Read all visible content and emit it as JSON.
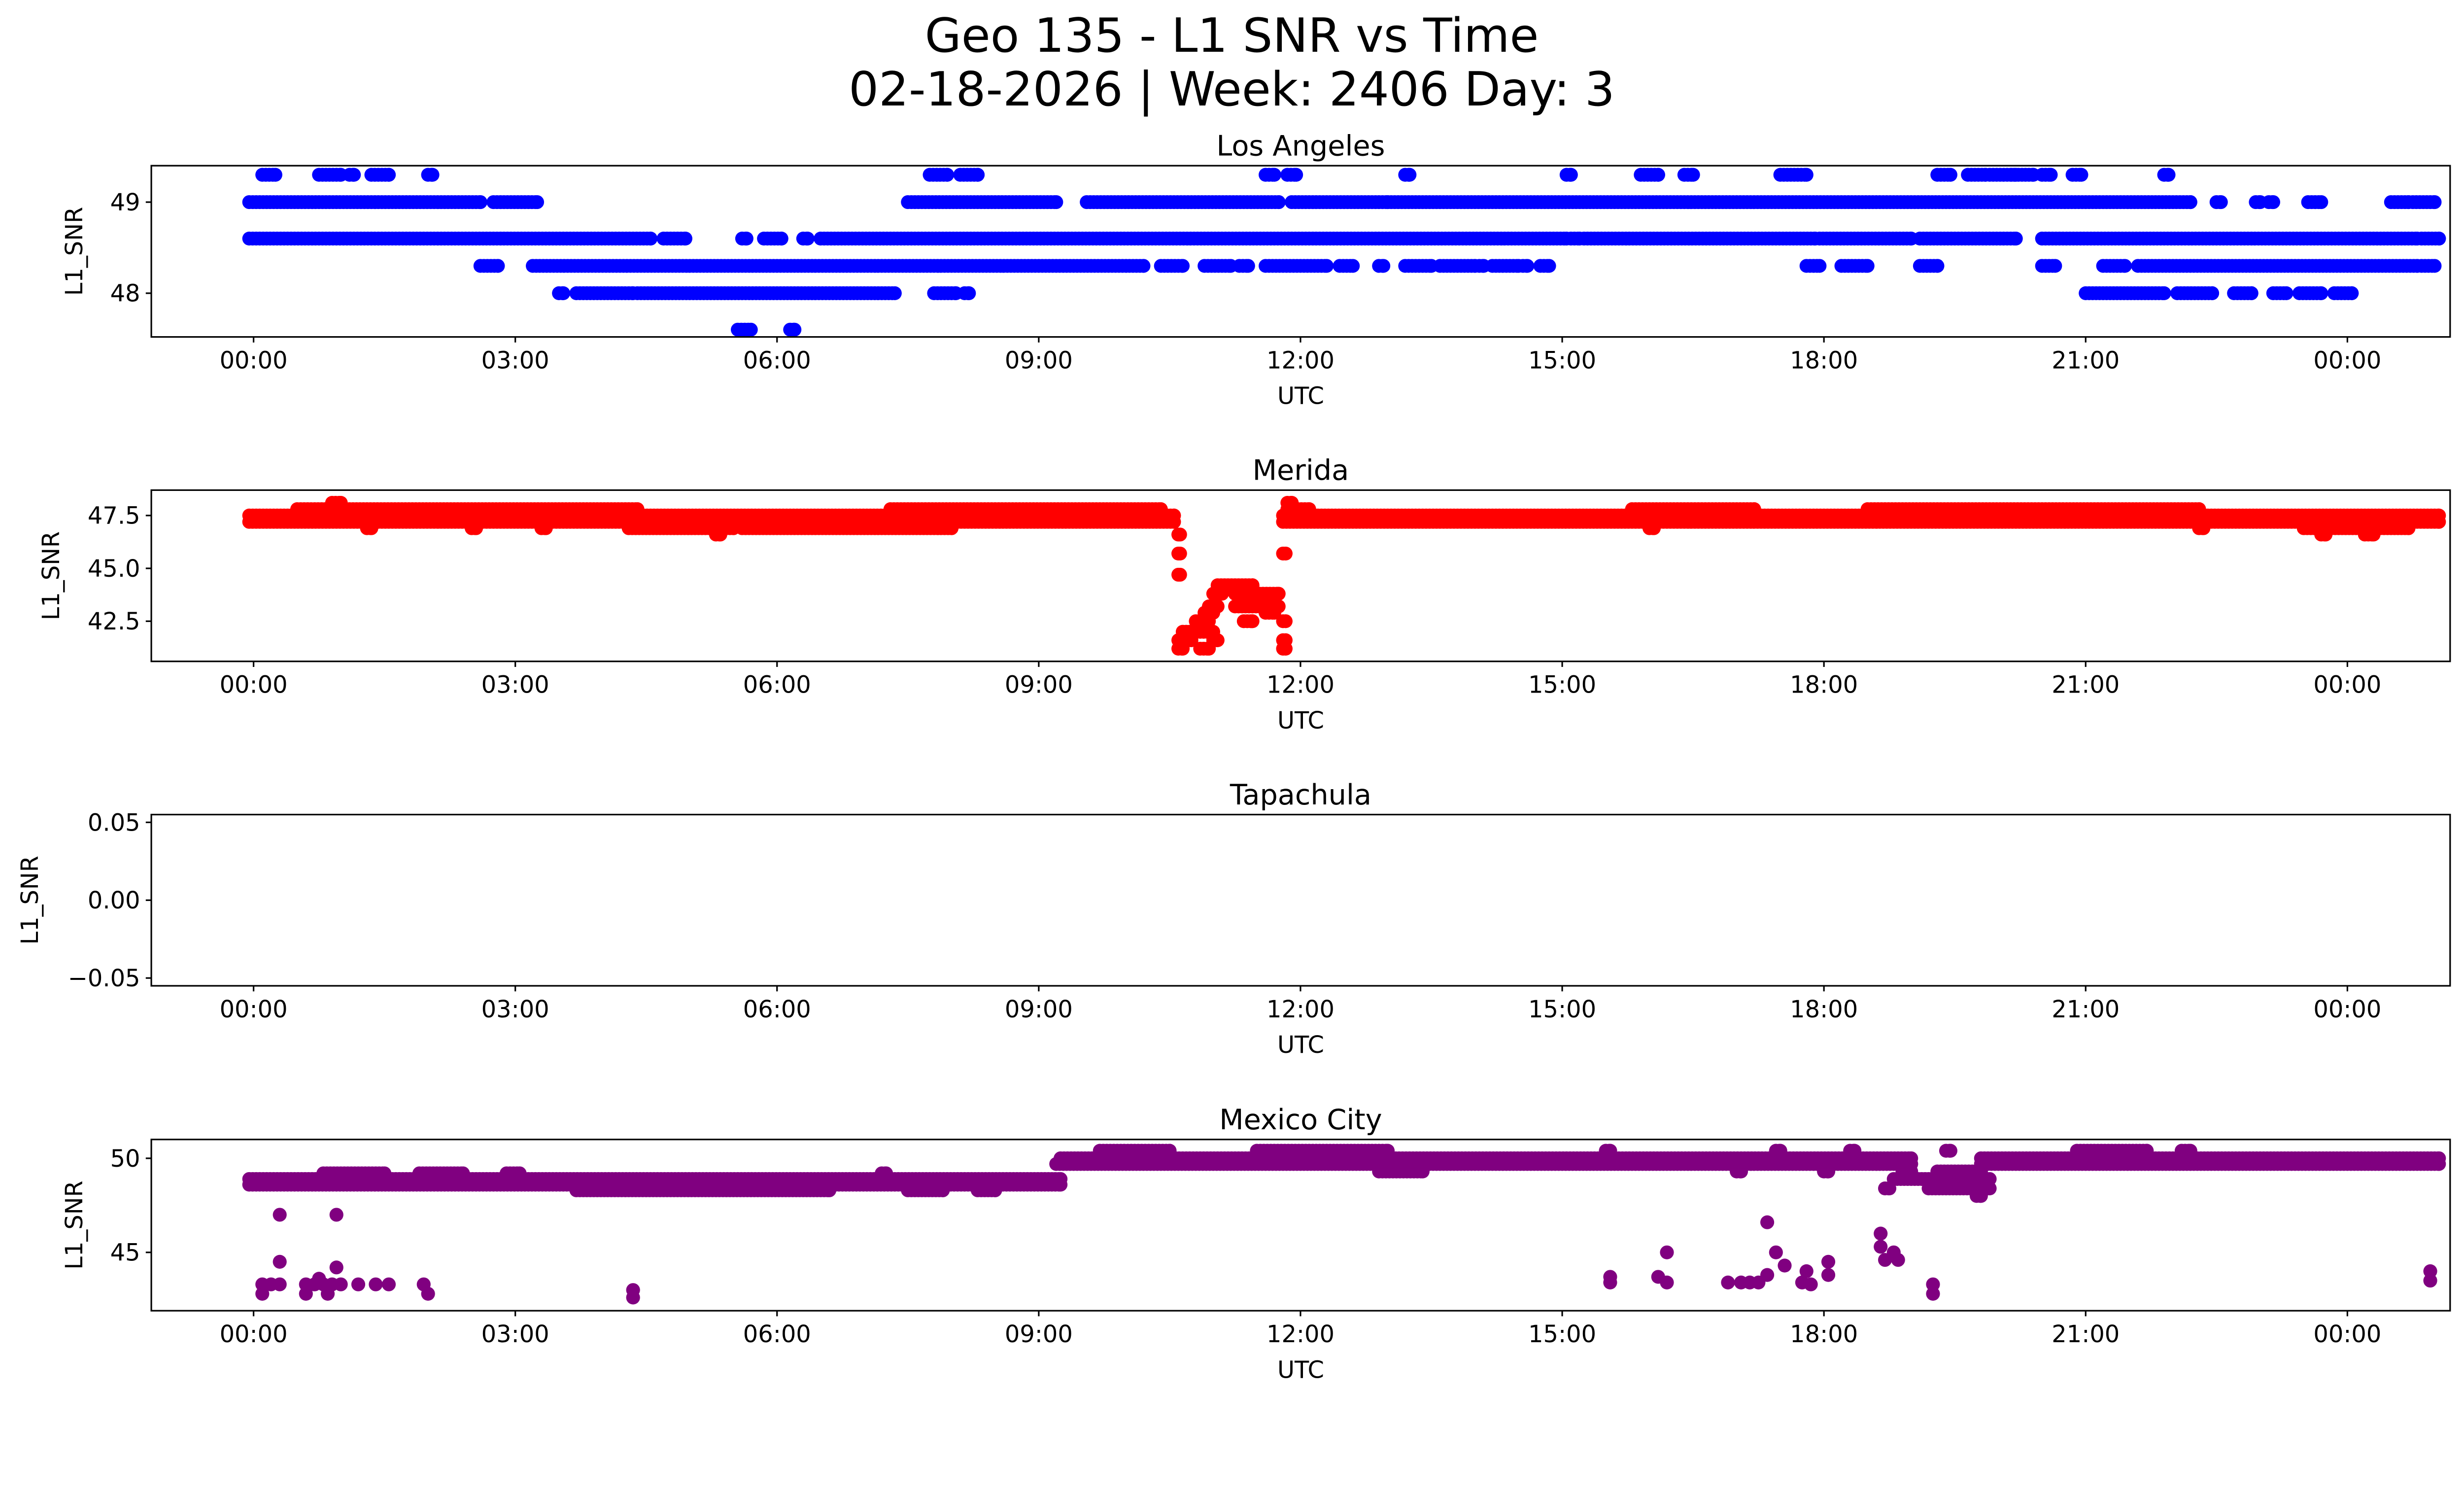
{
  "chart_data": {
    "type": "scatter",
    "title": "Geo 135 - L1 SNR vs Time",
    "subtitle": "02-18-2026 | Week: 2406 Day: 3",
    "x_tick_labels": [
      "00:00",
      "03:00",
      "06:00",
      "09:00",
      "12:00",
      "15:00",
      "18:00",
      "21:00",
      "00:00"
    ],
    "x_unit": "hours UTC",
    "xlim": [
      -1.2,
      25.3
    ],
    "panels": [
      {
        "title": "Los Angeles",
        "xlabel": "UTC",
        "ylabel": "L1_SNR",
        "color": "#0000ff",
        "ylim": [
          47.52,
          49.4
        ],
        "yticks": [
          48,
          49
        ],
        "ytick_labels": [
          "48",
          "49"
        ],
        "runs": [
          {
            "y": 49.3,
            "x": [
              [
                0.1,
                0.25
              ],
              [
                0.75,
                1.0
              ],
              [
                1.1,
                1.15
              ],
              [
                1.35,
                1.55
              ],
              [
                2.0,
                2.05
              ],
              [
                7.75,
                7.95
              ],
              [
                8.1,
                8.3
              ],
              [
                11.6,
                11.7
              ],
              [
                11.85,
                11.95
              ],
              [
                13.2,
                13.25
              ],
              [
                15.05,
                15.1
              ],
              [
                15.9,
                16.1
              ],
              [
                16.4,
                16.5
              ],
              [
                17.5,
                17.8
              ],
              [
                19.3,
                19.45
              ],
              [
                19.65,
                19.85
              ],
              [
                19.9,
                20.2
              ],
              [
                20.15,
                20.4
              ],
              [
                20.5,
                20.6
              ],
              [
                20.85,
                20.95
              ],
              [
                21.9,
                21.95
              ]
            ]
          },
          {
            "y": 49.0,
            "x": [
              [
                -0.05,
                2.6
              ],
              [
                2.75,
                3.25
              ],
              [
                7.5,
                9.2
              ],
              [
                9.55,
                11.75
              ],
              [
                11.9,
                13.0
              ],
              [
                13.0,
                22.2
              ],
              [
                22.5,
                22.55
              ],
              [
                22.95,
                23.0
              ],
              [
                23.1,
                23.15
              ],
              [
                23.55,
                23.7
              ],
              [
                24.5,
                24.7
              ],
              [
                24.75,
                25.0
              ]
            ]
          },
          {
            "y": 48.6,
            "x": [
              [
                -0.05,
                4.55
              ],
              [
                4.7,
                4.95
              ],
              [
                5.6,
                5.65
              ],
              [
                5.85,
                6.05
              ],
              [
                6.3,
                6.35
              ],
              [
                6.5,
                15.05
              ],
              [
                15.1,
                15.2
              ],
              [
                15.25,
                17.9
              ],
              [
                17.95,
                19.0
              ],
              [
                19.1,
                20.2
              ],
              [
                20.5,
                24.8
              ],
              [
                24.85,
                25.05
              ]
            ]
          },
          {
            "y": 48.3,
            "x": [
              [
                2.6,
                2.8
              ],
              [
                3.2,
                10.2
              ],
              [
                10.4,
                10.65
              ],
              [
                10.9,
                11.2
              ],
              [
                11.3,
                11.4
              ],
              [
                11.6,
                12.3
              ],
              [
                12.45,
                12.6
              ],
              [
                12.9,
                12.95
              ],
              [
                13.2,
                13.5
              ],
              [
                13.6,
                14.0
              ],
              [
                14.05,
                14.1
              ],
              [
                14.2,
                14.5
              ],
              [
                14.55,
                14.6
              ],
              [
                14.75,
                14.85
              ],
              [
                17.8,
                17.95
              ],
              [
                18.2,
                18.5
              ],
              [
                19.1,
                19.3
              ],
              [
                20.5,
                20.65
              ],
              [
                21.2,
                21.45
              ],
              [
                21.6,
                24.8
              ],
              [
                24.85,
                25.0
              ]
            ]
          },
          {
            "y": 48.0,
            "x": [
              [
                3.5,
                3.55
              ],
              [
                3.7,
                4.35
              ],
              [
                4.4,
                7.35
              ],
              [
                7.8,
                8.05
              ],
              [
                8.15,
                8.2
              ],
              [
                21.0,
                21.9
              ],
              [
                22.05,
                22.45
              ],
              [
                22.7,
                22.9
              ],
              [
                23.15,
                23.3
              ],
              [
                23.45,
                23.7
              ],
              [
                23.85,
                24.05
              ]
            ]
          },
          {
            "y": 47.6,
            "x": [
              [
                5.55,
                5.7
              ],
              [
                6.15,
                6.2
              ]
            ]
          }
        ],
        "points": []
      },
      {
        "title": "Merida",
        "xlabel": "UTC",
        "ylabel": "L1_SNR",
        "color": "#ff0000",
        "ylim": [
          40.6,
          48.7
        ],
        "yticks": [
          42.5,
          45.0,
          47.5
        ],
        "ytick_labels": [
          "42.5",
          "45.0",
          "47.5"
        ],
        "runs": [
          {
            "y": 47.2,
            "x": [
              [
                -0.05,
                10.55
              ],
              [
                11.8,
                25.05
              ]
            ]
          },
          {
            "y": 47.5,
            "x": [
              [
                -0.05,
                10.55
              ],
              [
                11.8,
                25.05
              ]
            ]
          },
          {
            "y": 47.8,
            "x": [
              [
                0.5,
                4.4
              ],
              [
                7.3,
                10.4
              ],
              [
                11.85,
                12.1
              ],
              [
                15.8,
                17.2
              ],
              [
                18.5,
                22.3
              ]
            ]
          },
          {
            "y": 48.1,
            "x": [
              [
                0.9,
                1.0
              ],
              [
                11.85,
                11.9
              ]
            ]
          },
          {
            "y": 46.9,
            "x": [
              [
                1.3,
                1.35
              ],
              [
                2.5,
                2.55
              ],
              [
                3.3,
                3.35
              ],
              [
                4.3,
                5.5
              ],
              [
                5.6,
                8.0
              ],
              [
                16.0,
                16.05
              ],
              [
                22.3,
                22.35
              ],
              [
                23.5,
                24.7
              ]
            ]
          },
          {
            "y": 46.6,
            "x": [
              [
                5.3,
                5.35
              ],
              [
                10.6,
                10.62
              ],
              [
                23.7,
                23.75
              ],
              [
                24.2,
                24.3
              ]
            ]
          },
          {
            "y": 45.7,
            "x": [
              [
                10.6,
                10.62
              ],
              [
                11.8,
                11.83
              ]
            ]
          },
          {
            "y": 44.7,
            "x": [
              [
                10.6,
                10.62
              ]
            ]
          },
          {
            "y": 44.2,
            "x": [
              [
                11.05,
                11.45
              ]
            ]
          },
          {
            "y": 43.8,
            "x": [
              [
                11.0,
                11.1
              ],
              [
                11.25,
                11.75
              ]
            ]
          },
          {
            "y": 43.2,
            "x": [
              [
                10.95,
                11.05
              ],
              [
                11.25,
                11.75
              ]
            ]
          },
          {
            "y": 42.9,
            "x": [
              [
                10.9,
                11.0
              ],
              [
                11.6,
                11.7
              ]
            ]
          },
          {
            "y": 42.5,
            "x": [
              [
                10.8,
                10.95
              ],
              [
                11.35,
                11.45
              ],
              [
                11.8,
                11.83
              ]
            ]
          },
          {
            "y": 42.0,
            "x": [
              [
                10.65,
                11.0
              ]
            ]
          },
          {
            "y": 41.6,
            "x": [
              [
                10.6,
                10.75
              ],
              [
                11.0,
                11.05
              ],
              [
                11.8,
                11.83
              ]
            ]
          },
          {
            "y": 41.2,
            "x": [
              [
                10.6,
                10.65
              ],
              [
                10.85,
                10.95
              ],
              [
                11.8,
                11.83
              ]
            ]
          }
        ],
        "points": []
      },
      {
        "title": "Tapachula",
        "xlabel": "UTC",
        "ylabel": "L1_SNR",
        "color": "#800080",
        "ylim": [
          -0.055,
          0.055
        ],
        "yticks": [
          -0.05,
          0.0,
          0.05
        ],
        "ytick_labels": [
          "−0.05",
          "0.00",
          "0.05"
        ],
        "runs": [],
        "points": []
      },
      {
        "title": "Mexico City",
        "xlabel": "UTC",
        "ylabel": "L1_SNR",
        "color": "#800080",
        "ylim": [
          41.9,
          51.0
        ],
        "yticks": [
          45,
          50
        ],
        "ytick_labels": [
          "45",
          "50"
        ],
        "runs": [
          {
            "y": 48.6,
            "x": [
              [
                -0.05,
                9.25
              ]
            ]
          },
          {
            "y": 48.9,
            "x": [
              [
                -0.05,
                9.25
              ]
            ]
          },
          {
            "y": 49.2,
            "x": [
              [
                0.8,
                1.5
              ],
              [
                1.9,
                2.4
              ],
              [
                2.9,
                3.05
              ],
              [
                7.2,
                7.25
              ]
            ]
          },
          {
            "y": 48.3,
            "x": [
              [
                3.7,
                6.6
              ],
              [
                7.5,
                7.9
              ],
              [
                8.3,
                8.5
              ]
            ]
          },
          {
            "y": 49.7,
            "x": [
              [
                9.2,
                19.0
              ],
              [
                19.8,
                25.05
              ]
            ]
          },
          {
            "y": 50.0,
            "x": [
              [
                9.25,
                19.0
              ],
              [
                19.8,
                25.05
              ]
            ]
          },
          {
            "y": 50.4,
            "x": [
              [
                9.7,
                10.5
              ],
              [
                11.5,
                13.0
              ],
              [
                15.5,
                15.55
              ],
              [
                17.45,
                17.5
              ],
              [
                18.3,
                18.35
              ],
              [
                19.4,
                19.45
              ],
              [
                20.9,
                21.7
              ],
              [
                22.1,
                22.2
              ]
            ]
          },
          {
            "y": 49.3,
            "x": [
              [
                12.9,
                13.4
              ],
              [
                17.0,
                17.05
              ],
              [
                18.0,
                18.05
              ],
              [
                18.9,
                19.0
              ],
              [
                19.3,
                19.8
              ]
            ]
          },
          {
            "y": 48.9,
            "x": [
              [
                18.8,
                19.9
              ]
            ]
          },
          {
            "y": 48.4,
            "x": [
              [
                18.7,
                18.75
              ],
              [
                19.2,
                19.9
              ]
            ]
          },
          {
            "y": 48.0,
            "x": [
              [
                19.75,
                19.8
              ]
            ]
          }
        ],
        "points": [
          {
            "x": 0.3,
            "y": 47.0
          },
          {
            "x": 0.95,
            "y": 47.0
          },
          {
            "x": 0.3,
            "y": 44.5
          },
          {
            "x": 0.95,
            "y": 44.2
          },
          {
            "x": 0.1,
            "y": 43.3
          },
          {
            "x": 0.2,
            "y": 43.3
          },
          {
            "x": 0.3,
            "y": 43.3
          },
          {
            "x": 0.1,
            "y": 42.8
          },
          {
            "x": 0.6,
            "y": 43.3
          },
          {
            "x": 0.7,
            "y": 43.3
          },
          {
            "x": 0.75,
            "y": 43.6
          },
          {
            "x": 0.8,
            "y": 43.3
          },
          {
            "x": 0.9,
            "y": 43.3
          },
          {
            "x": 1.0,
            "y": 43.3
          },
          {
            "x": 0.6,
            "y": 42.8
          },
          {
            "x": 0.85,
            "y": 42.8
          },
          {
            "x": 1.2,
            "y": 43.3
          },
          {
            "x": 1.4,
            "y": 43.3
          },
          {
            "x": 1.55,
            "y": 43.3
          },
          {
            "x": 1.95,
            "y": 43.3
          },
          {
            "x": 2.0,
            "y": 42.8
          },
          {
            "x": 4.35,
            "y": 43.0
          },
          {
            "x": 4.35,
            "y": 42.6
          },
          {
            "x": 15.55,
            "y": 43.7
          },
          {
            "x": 15.55,
            "y": 43.4
          },
          {
            "x": 16.1,
            "y": 43.7
          },
          {
            "x": 16.2,
            "y": 43.4
          },
          {
            "x": 16.2,
            "y": 45.0
          },
          {
            "x": 16.9,
            "y": 43.4
          },
          {
            "x": 17.05,
            "y": 43.4
          },
          {
            "x": 17.15,
            "y": 43.4
          },
          {
            "x": 17.25,
            "y": 43.4
          },
          {
            "x": 17.35,
            "y": 43.8
          },
          {
            "x": 17.35,
            "y": 46.6
          },
          {
            "x": 17.45,
            "y": 45.0
          },
          {
            "x": 17.55,
            "y": 44.3
          },
          {
            "x": 17.75,
            "y": 43.4
          },
          {
            "x": 17.8,
            "y": 44.0
          },
          {
            "x": 17.85,
            "y": 43.3
          },
          {
            "x": 18.05,
            "y": 44.5
          },
          {
            "x": 18.05,
            "y": 43.8
          },
          {
            "x": 18.65,
            "y": 46.0
          },
          {
            "x": 18.65,
            "y": 45.3
          },
          {
            "x": 18.7,
            "y": 44.6
          },
          {
            "x": 18.8,
            "y": 45.0
          },
          {
            "x": 18.85,
            "y": 44.6
          },
          {
            "x": 19.25,
            "y": 43.3
          },
          {
            "x": 19.25,
            "y": 42.8
          },
          {
            "x": 24.95,
            "y": 44.0
          },
          {
            "x": 24.95,
            "y": 43.5
          }
        ]
      }
    ]
  }
}
